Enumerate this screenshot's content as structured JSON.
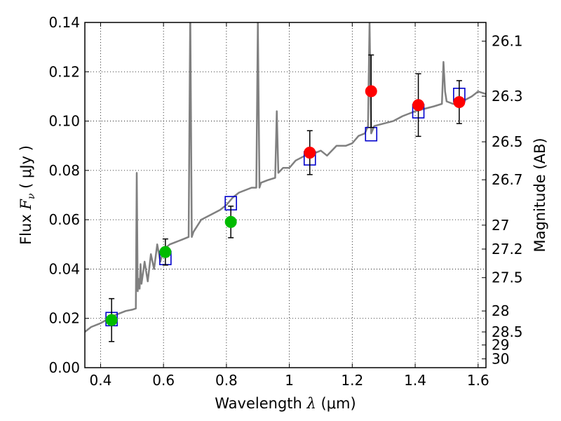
{
  "chart_data": {
    "type": "scatter",
    "xlabel": {
      "prefix": "Wavelength  ",
      "symbol": "λ",
      "units": " (μm)"
    },
    "ylabel": {
      "prefix": "Flux  ",
      "symbol": "F",
      "sub": "ν",
      "units": "  ( μJy )"
    },
    "y2label": "Magnitude (AB)",
    "xlim": [
      0.35,
      1.625
    ],
    "ylim": [
      0.0,
      0.14
    ],
    "xticks": [
      0.4,
      0.6,
      0.8,
      1.0,
      1.2,
      1.4,
      1.6
    ],
    "xtick_labels": [
      "0.4",
      "0.6",
      "0.8",
      "1",
      "1.2",
      "1.4",
      "1.6"
    ],
    "yticks": [
      0.0,
      0.02,
      0.04,
      0.06,
      0.08,
      0.1,
      0.12,
      0.14
    ],
    "ytick_labels": [
      "0.00",
      "0.02",
      "0.04",
      "0.06",
      "0.08",
      "0.10",
      "0.12",
      "0.14"
    ],
    "y2ticks": [
      {
        "label": "26.1",
        "flux": 0.1324
      },
      {
        "label": "26.3",
        "flux": 0.1101
      },
      {
        "label": "26.5",
        "flux": 0.0916
      },
      {
        "label": "26.7",
        "flux": 0.0762
      },
      {
        "label": "27",
        "flux": 0.0578
      },
      {
        "label": "27.2",
        "flux": 0.0481
      },
      {
        "label": "27.5",
        "flux": 0.0365
      },
      {
        "label": "28",
        "flux": 0.023
      },
      {
        "label": "28.5",
        "flux": 0.0145
      },
      {
        "label": "29",
        "flux": 0.0092
      },
      {
        "label": "30",
        "flux": 0.0036
      }
    ],
    "grid": true,
    "series": [
      {
        "kind": "model-spectrum",
        "color": "#808080",
        "x": [
          0.35,
          0.37,
          0.4,
          0.42,
          0.45,
          0.48,
          0.5,
          0.512,
          0.515,
          0.518,
          0.521,
          0.524,
          0.527,
          0.53,
          0.54,
          0.55,
          0.56,
          0.57,
          0.58,
          0.59,
          0.6,
          0.62,
          0.64,
          0.66,
          0.68,
          0.685,
          0.69,
          0.695,
          0.7,
          0.72,
          0.75,
          0.78,
          0.8,
          0.82,
          0.84,
          0.86,
          0.88,
          0.895,
          0.9,
          0.905,
          0.91,
          0.93,
          0.955,
          0.96,
          0.965,
          0.98,
          1.0,
          1.02,
          1.05,
          1.08,
          1.1,
          1.12,
          1.15,
          1.18,
          1.2,
          1.22,
          1.24,
          1.25,
          1.255,
          1.26,
          1.27,
          1.3,
          1.33,
          1.36,
          1.4,
          1.43,
          1.46,
          1.485,
          1.49,
          1.495,
          1.5,
          1.52,
          1.55,
          1.58,
          1.6,
          1.625
        ],
        "y": [
          0.0145,
          0.0165,
          0.018,
          0.0195,
          0.0215,
          0.023,
          0.0235,
          0.024,
          0.079,
          0.031,
          0.036,
          0.032,
          0.042,
          0.034,
          0.043,
          0.035,
          0.046,
          0.04,
          0.05,
          0.043,
          0.048,
          0.05,
          0.051,
          0.052,
          0.053,
          0.145,
          0.053,
          0.055,
          0.056,
          0.06,
          0.062,
          0.064,
          0.066,
          0.069,
          0.071,
          0.072,
          0.073,
          0.073,
          0.14,
          0.073,
          0.075,
          0.076,
          0.077,
          0.104,
          0.079,
          0.081,
          0.081,
          0.084,
          0.086,
          0.087,
          0.088,
          0.086,
          0.09,
          0.09,
          0.091,
          0.094,
          0.095,
          0.098,
          0.14,
          0.095,
          0.098,
          0.099,
          0.1,
          0.102,
          0.104,
          0.105,
          0.106,
          0.107,
          0.124,
          0.112,
          0.108,
          0.107,
          0.108,
          0.11,
          0.112,
          0.111
        ]
      },
      {
        "kind": "model-band-flux",
        "color": "#0000cc",
        "marker": "open-square",
        "x": [
          0.435,
          0.606,
          0.814,
          1.065,
          1.26,
          1.41,
          1.54
        ],
        "y": [
          0.0197,
          0.0445,
          0.0667,
          0.0849,
          0.0947,
          0.104,
          0.1106
        ]
      },
      {
        "kind": "observed-optical",
        "color": "#00bb00",
        "marker": "filled-circle",
        "x": [
          0.435,
          0.606,
          0.814
        ],
        "y": [
          0.0193,
          0.0469,
          0.0591
        ],
        "err": [
          0.0087,
          0.0053,
          0.0064
        ]
      },
      {
        "kind": "observed-nir",
        "color": "#ff0000",
        "marker": "filled-circle",
        "x": [
          1.065,
          1.26,
          1.41,
          1.54
        ],
        "y": [
          0.0872,
          0.1121,
          0.1065,
          0.1077
        ],
        "err": [
          0.0089,
          0.0147,
          0.0127,
          0.0087
        ]
      }
    ]
  }
}
